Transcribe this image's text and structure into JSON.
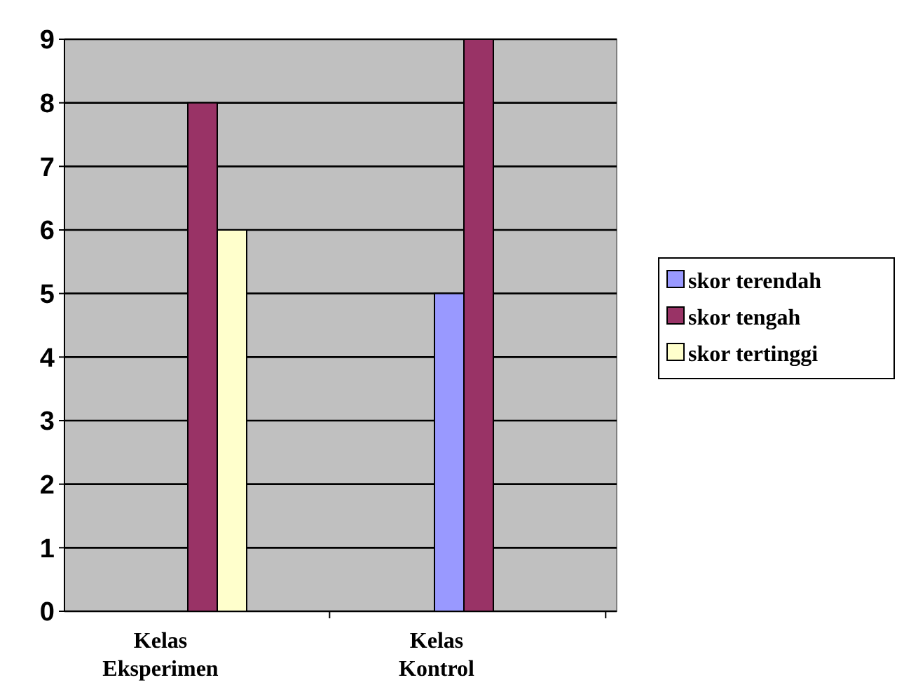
{
  "chart_data": {
    "type": "bar",
    "categories": [
      "Kelas Eksperimen",
      "Kelas Kontrol"
    ],
    "series": [
      {
        "name": "skor terendah",
        "color": "#9999ff",
        "values": [
          0,
          5
        ]
      },
      {
        "name": "skor tengah",
        "color": "#993366",
        "values": [
          8,
          9
        ]
      },
      {
        "name": "skor tertinggi",
        "color": "#ffffcc",
        "values": [
          6,
          0
        ]
      }
    ],
    "ylim": [
      0,
      9
    ],
    "yticks": [
      0,
      1,
      2,
      3,
      4,
      5,
      6,
      7,
      8,
      9
    ],
    "grid": "y",
    "legend": "right"
  }
}
